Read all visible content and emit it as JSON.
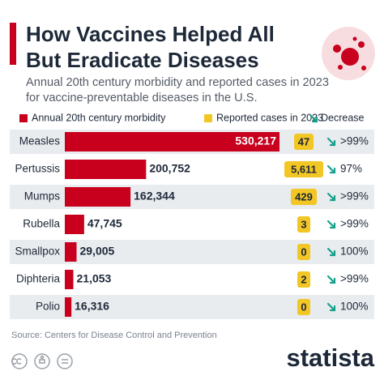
{
  "chart_data": {
    "type": "bar",
    "title": "How Vaccines Helped All But Eradicate Diseases",
    "subtitle": "Annual 20th century morbidity and reported cases in 2023 for vaccine-preventable diseases in the U.S.",
    "categories": [
      "Measles",
      "Pertussis",
      "Mumps",
      "Rubella",
      "Smallpox",
      "Diphteria",
      "Polio"
    ],
    "series": [
      {
        "name": "Annual 20th century morbidity",
        "color": "#c8001e",
        "values": [
          530217,
          200752,
          162344,
          47745,
          29005,
          21053,
          16316
        ],
        "value_labels": [
          "530,217",
          "200,752",
          "162,344",
          "47,745",
          "29,005",
          "21,053",
          "16,316"
        ]
      },
      {
        "name": "Reported cases in 2023",
        "color": "#f2c624",
        "values": [
          47,
          5611,
          429,
          3,
          0,
          2,
          0
        ],
        "value_labels": [
          "47",
          "5,611",
          "429",
          "3",
          "0",
          "2",
          "0"
        ]
      }
    ],
    "decrease": {
      "name": "Decrease",
      "color": "#17a08c",
      "labels": [
        ">99%",
        "97%",
        ">99%",
        ">99%",
        "100%",
        ">99%",
        "100%"
      ]
    },
    "source": "Source: Centers for Disease Control and Prevention",
    "brand": "statista"
  }
}
